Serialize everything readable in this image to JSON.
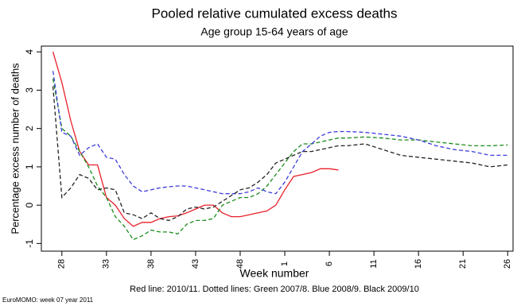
{
  "chart_data": {
    "type": "line",
    "title": "Pooled relative cumulated excess deaths",
    "subtitle": "Age group 15-64 years of age",
    "x_label": "Week number",
    "y_label": "Percentage excess number of deaths",
    "caption": "Red line: 2010/11. Dotted lines: Green 2007/8. Blue 2008/9. Black 2009/10",
    "footer": "EuroMOMO: week 07 year 2011",
    "x": [
      27,
      28,
      29,
      30,
      31,
      32,
      33,
      34,
      35,
      36,
      37,
      38,
      39,
      40,
      41,
      42,
      43,
      44,
      45,
      46,
      47,
      48,
      49,
      50,
      51,
      52,
      53,
      54,
      55,
      56,
      57,
      58,
      59,
      60,
      62,
      64,
      66,
      68,
      70,
      72,
      74,
      76,
      78
    ],
    "xlim": [
      25.7,
      78.6
    ],
    "xticks": [
      {
        "value": 28,
        "label": "28"
      },
      {
        "value": 33,
        "label": "33"
      },
      {
        "value": 38,
        "label": "38"
      },
      {
        "value": 43,
        "label": "43"
      },
      {
        "value": 48,
        "label": "48"
      },
      {
        "value": 53,
        "label": "1"
      },
      {
        "value": 58,
        "label": "6"
      },
      {
        "value": 63,
        "label": "11"
      },
      {
        "value": 68,
        "label": "16"
      },
      {
        "value": 73,
        "label": "21"
      },
      {
        "value": 78,
        "label": "26"
      }
    ],
    "ylim": [
      -1.2,
      4.15
    ],
    "yticks": [
      -1,
      0,
      1,
      2,
      3,
      4
    ],
    "series": [
      {
        "color": "#e8202a",
        "dashed": false,
        "values": [
          4,
          3.2,
          2.2,
          1.4,
          1.05,
          1.05,
          0.2,
          0,
          -0.35,
          -0.55,
          -0.45,
          -0.45,
          -0.35,
          -0.3,
          -0.28,
          -0.2,
          -0.1,
          0,
          0,
          -0.2,
          -0.3,
          -0.3,
          -0.25,
          -0.2,
          -0.15,
          0,
          0.4,
          0.75,
          0.8,
          0.85,
          0.95,
          0.95,
          0.92,
          null,
          null,
          null,
          null,
          null,
          null,
          null,
          null,
          null,
          null
        ]
      },
      {
        "color": "#1a8c1a",
        "dashed": true,
        "values": [
          3.3,
          2,
          1.8,
          1.4,
          1.0,
          0.5,
          0.2,
          -0.3,
          -0.55,
          -0.9,
          -0.8,
          -0.65,
          -0.7,
          -0.7,
          -0.75,
          -0.5,
          -0.4,
          -0.4,
          -0.35,
          0,
          0.1,
          0.2,
          0.2,
          0.3,
          0.5,
          0.8,
          1.1,
          1.4,
          1.6,
          1.6,
          1.65,
          1.7,
          1.75,
          1.75,
          1.78,
          1.75,
          1.7,
          1.7,
          1.65,
          1.6,
          1.55,
          1.55,
          1.57
        ]
      },
      {
        "color": "#3c3cdc",
        "dashed": true,
        "values": [
          3.5,
          1.9,
          1.8,
          1.3,
          1.5,
          1.6,
          1.25,
          1.2,
          0.8,
          0.5,
          0.35,
          0.4,
          0.45,
          0.48,
          0.5,
          0.5,
          0.45,
          0.4,
          0.35,
          0.3,
          0.3,
          0.3,
          0.35,
          0.45,
          0.35,
          0.3,
          0.6,
          1.0,
          1.4,
          1.6,
          1.8,
          1.9,
          1.92,
          1.92,
          1.9,
          1.85,
          1.8,
          1.7,
          1.55,
          1.45,
          1.4,
          1.3,
          1.3
        ]
      },
      {
        "color": "#222222",
        "dashed": true,
        "values": [
          3.1,
          0.2,
          0.45,
          0.8,
          0.7,
          0.4,
          0.45,
          0.4,
          -0.2,
          -0.25,
          -0.35,
          -0.2,
          -0.35,
          -0.4,
          -0.3,
          -0.1,
          -0.05,
          -0.1,
          -0.05,
          0.1,
          0.25,
          0.4,
          0.45,
          0.6,
          0.8,
          1.1,
          1.2,
          1.3,
          1.4,
          1.4,
          1.45,
          1.5,
          1.55,
          1.55,
          1.6,
          1.45,
          1.3,
          1.25,
          1.2,
          1.15,
          1.1,
          1.0,
          1.05
        ]
      }
    ]
  }
}
